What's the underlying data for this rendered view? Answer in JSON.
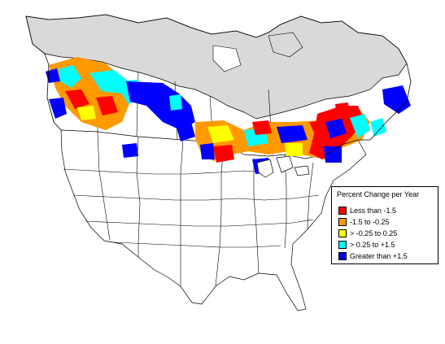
{
  "legend": {
    "title": "Percent Change per Year",
    "items": [
      {
        "label": "Less than -1.5",
        "color": "#ff0000"
      },
      {
        "label": "-1.5 to -0.25",
        "color": "#ff9900"
      },
      {
        "label": "> -0.25 to 0.25",
        "color": "#ffff00"
      },
      {
        "label": "> 0.25 to +1.5",
        "color": "#00ffff"
      },
      {
        "label": "Greater than +1.5",
        "color": "#0000ff"
      }
    ]
  },
  "colors": {
    "unsurveyed": "#d9d9d9",
    "land": "#ffffff",
    "border": "#000000"
  }
}
